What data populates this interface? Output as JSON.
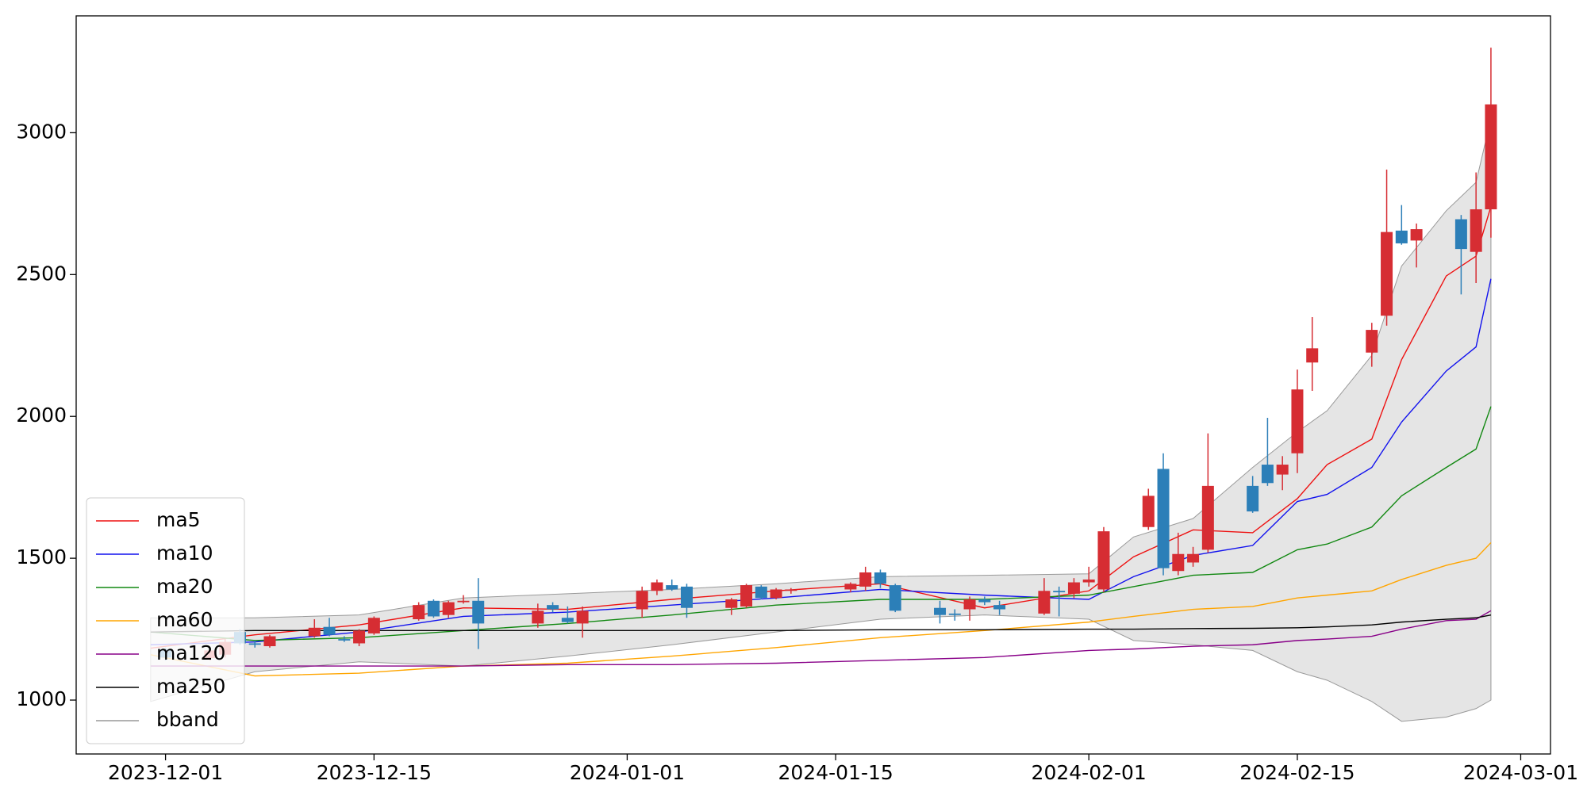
{
  "chart_data": {
    "type": "candlestick",
    "xlim": [
      "2023-11-25",
      "2024-03-03"
    ],
    "xticks": [
      "2023-12-01",
      "2023-12-15",
      "2024-01-01",
      "2024-01-15",
      "2024-02-01",
      "2024-02-15",
      "2024-03-01"
    ],
    "ylim": [
      810,
      3412
    ],
    "yticks": [
      1000,
      1500,
      2000,
      2500,
      3000
    ],
    "grid": false,
    "legend": "lower left",
    "up_color": "#d62d33",
    "down_color": "#2c7fb8",
    "candles": {
      "x": [
        "2023-12-01",
        "2023-12-04",
        "2023-12-05",
        "2023-12-06",
        "2023-12-07",
        "2023-12-08",
        "2023-12-11",
        "2023-12-12",
        "2023-12-13",
        "2023-12-14",
        "2023-12-15",
        "2023-12-18",
        "2023-12-19",
        "2023-12-20",
        "2023-12-21",
        "2023-12-22",
        "2023-12-26",
        "2023-12-27",
        "2023-12-28",
        "2023-12-29",
        "2024-01-02",
        "2024-01-03",
        "2024-01-04",
        "2024-01-05",
        "2024-01-08",
        "2024-01-09",
        "2024-01-10",
        "2024-01-11",
        "2024-01-12",
        "2024-01-16",
        "2024-01-17",
        "2024-01-18",
        "2024-01-19",
        "2024-01-22",
        "2024-01-23",
        "2024-01-24",
        "2024-01-25",
        "2024-01-26",
        "2024-01-29",
        "2024-01-30",
        "2024-01-31",
        "2024-02-01",
        "2024-02-02",
        "2024-02-05",
        "2024-02-06",
        "2024-02-07",
        "2024-02-08",
        "2024-02-09",
        "2024-02-12",
        "2024-02-13",
        "2024-02-14",
        "2024-02-15",
        "2024-02-16",
        "2024-02-20",
        "2024-02-21",
        "2024-02-22",
        "2024-02-23",
        "2024-02-26",
        "2024-02-27",
        "2024-02-28"
      ],
      "open": [
        1180,
        1148,
        1160,
        1240,
        1200,
        1190,
        1225,
        1258,
        1215,
        1200,
        1235,
        1285,
        1350,
        1300,
        1345,
        1350,
        1270,
        1335,
        1290,
        1270,
        1320,
        1385,
        1405,
        1400,
        1325,
        1330,
        1400,
        1360,
        1385,
        1390,
        1400,
        1450,
        1405,
        1325,
        1305,
        1320,
        1355,
        1335,
        1305,
        1385,
        1375,
        1415,
        1390,
        1610,
        1815,
        1455,
        1485,
        1530,
        1755,
        1830,
        1795,
        1870,
        2190,
        2225,
        2355,
        2655,
        2620,
        2695,
        2580,
        2730
      ],
      "high": [
        1185,
        1180,
        1215,
        1250,
        1210,
        1230,
        1285,
        1290,
        1225,
        1250,
        1295,
        1345,
        1355,
        1350,
        1370,
        1430,
        1340,
        1345,
        1330,
        1330,
        1400,
        1425,
        1425,
        1410,
        1360,
        1410,
        1405,
        1395,
        1395,
        1415,
        1470,
        1460,
        1410,
        1350,
        1320,
        1365,
        1365,
        1350,
        1430,
        1400,
        1430,
        1470,
        1610,
        1745,
        1870,
        1590,
        1540,
        1940,
        1790,
        1995,
        1860,
        2165,
        2350,
        2330,
        2870,
        2745,
        2680,
        2710,
        2860,
        3300
      ],
      "low": [
        1140,
        1140,
        1150,
        1195,
        1185,
        1185,
        1220,
        1225,
        1205,
        1190,
        1230,
        1280,
        1290,
        1290,
        1340,
        1180,
        1255,
        1310,
        1270,
        1220,
        1290,
        1370,
        1385,
        1290,
        1300,
        1325,
        1355,
        1355,
        1375,
        1380,
        1385,
        1395,
        1310,
        1270,
        1280,
        1280,
        1335,
        1300,
        1300,
        1295,
        1360,
        1400,
        1380,
        1600,
        1440,
        1440,
        1470,
        1520,
        1660,
        1755,
        1740,
        1800,
        2090,
        2175,
        2320,
        2605,
        2525,
        2430,
        2470,
        2630
      ],
      "close": [
        1150,
        1175,
        1205,
        1200,
        1195,
        1225,
        1255,
        1230,
        1210,
        1245,
        1290,
        1335,
        1295,
        1345,
        1350,
        1270,
        1315,
        1320,
        1275,
        1315,
        1385,
        1415,
        1390,
        1325,
        1355,
        1405,
        1360,
        1390,
        1390,
        1410,
        1450,
        1410,
        1315,
        1300,
        1300,
        1355,
        1345,
        1320,
        1385,
        1380,
        1415,
        1425,
        1595,
        1720,
        1465,
        1515,
        1515,
        1755,
        1665,
        1765,
        1830,
        2095,
        2240,
        2305,
        2650,
        2610,
        2660,
        2590,
        2730,
        3100
      ]
    },
    "line_x": [
      "2023-11-30",
      "2023-12-07",
      "2023-12-14",
      "2023-12-21",
      "2023-12-28",
      "2024-01-04",
      "2024-01-11",
      "2024-01-18",
      "2024-01-25",
      "2024-02-01",
      "2024-02-04",
      "2024-02-08",
      "2024-02-12",
      "2024-02-15",
      "2024-02-17",
      "2024-02-20",
      "2024-02-22",
      "2024-02-25",
      "2024-02-27",
      "2024-02-28"
    ],
    "series": [
      {
        "name": "ma5",
        "color": "#ee1111",
        "values": [
          1183,
          1230,
          1265,
          1325,
          1320,
          1355,
          1385,
          1410,
          1325,
          1385,
          1505,
          1600,
          1590,
          1710,
          1830,
          1920,
          2200,
          2495,
          2565,
          2740
        ]
      },
      {
        "name": "ma10",
        "color": "#1111ee",
        "values": [
          1195,
          1205,
          1240,
          1295,
          1310,
          1335,
          1360,
          1390,
          1370,
          1355,
          1435,
          1510,
          1545,
          1700,
          1725,
          1820,
          1980,
          2160,
          2245,
          2485
        ]
      },
      {
        "name": "ma20",
        "color": "#118811",
        "values": [
          1240,
          1210,
          1220,
          1245,
          1270,
          1300,
          1335,
          1355,
          1355,
          1370,
          1400,
          1440,
          1450,
          1530,
          1550,
          1610,
          1720,
          1820,
          1885,
          2035
        ]
      },
      {
        "name": "ma60",
        "color": "#ffa500",
        "values": [
          1160,
          1085,
          1095,
          1120,
          1130,
          1155,
          1185,
          1220,
          1245,
          1275,
          1295,
          1320,
          1330,
          1360,
          1370,
          1385,
          1425,
          1475,
          1500,
          1555
        ]
      },
      {
        "name": "ma120",
        "color": "#880088",
        "values": [
          1120,
          1120,
          1120,
          1120,
          1125,
          1125,
          1130,
          1140,
          1150,
          1175,
          1180,
          1190,
          1195,
          1210,
          1215,
          1225,
          1250,
          1280,
          1285,
          1315
        ]
      },
      {
        "name": "ma250",
        "color": "#000000",
        "values": [
          1240,
          1245,
          1245,
          1245,
          1245,
          1245,
          1245,
          1248,
          1248,
          1250,
          1250,
          1252,
          1253,
          1255,
          1258,
          1265,
          1275,
          1285,
          1290,
          1300
        ]
      }
    ],
    "bband": {
      "name": "bband",
      "color": "#999999",
      "fill": "#e5e5e5",
      "upper": [
        1290,
        1290,
        1300,
        1360,
        1375,
        1390,
        1410,
        1435,
        1440,
        1445,
        1575,
        1640,
        1820,
        1945,
        2020,
        2215,
        2530,
        2725,
        2825,
        3050
      ],
      "lower": [
        995,
        1100,
        1135,
        1120,
        1155,
        1195,
        1240,
        1285,
        1300,
        1285,
        1210,
        1195,
        1175,
        1100,
        1070,
        995,
        925,
        940,
        970,
        1000
      ]
    }
  }
}
